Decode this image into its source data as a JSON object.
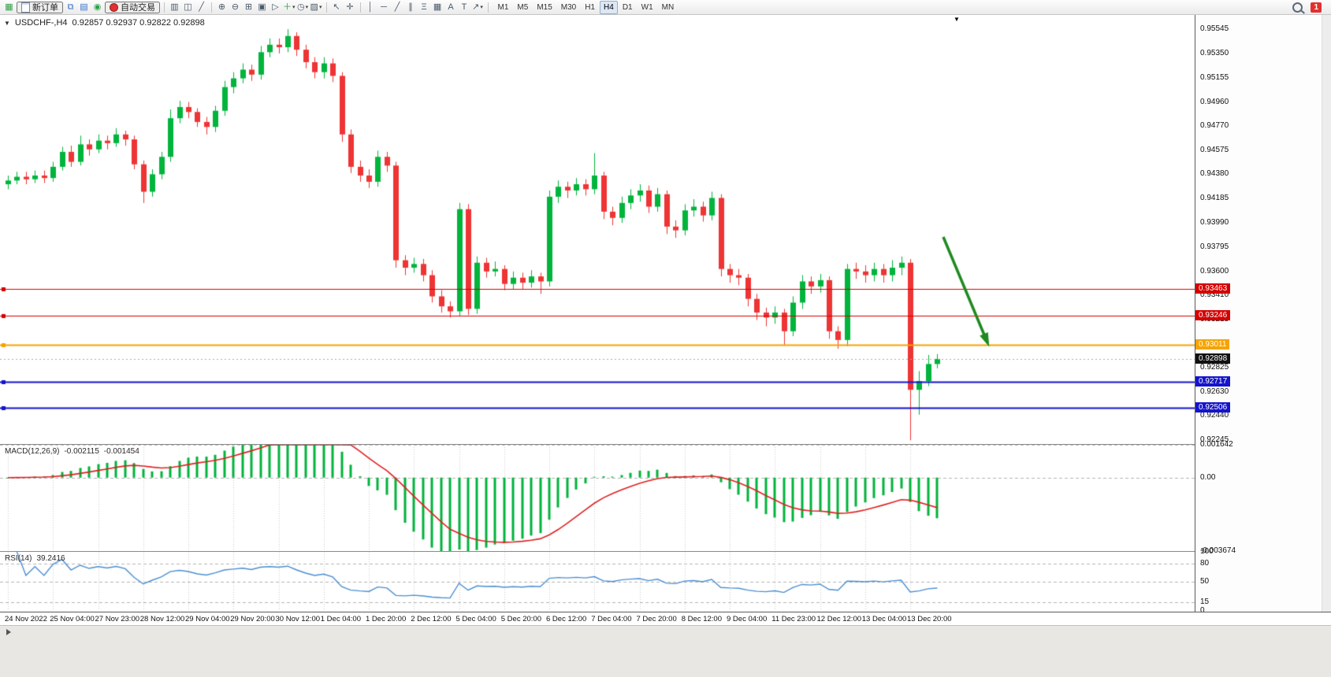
{
  "toolbar": {
    "buttons": {
      "new_order": "新订单",
      "autotrade": "自动交易"
    },
    "timeframes": [
      "M1",
      "M5",
      "M15",
      "M30",
      "H1",
      "H4",
      "D1",
      "W1",
      "MN"
    ],
    "active_timeframe": "H4",
    "notification_badge": "1"
  },
  "chart": {
    "symbol_label": "USDCHF-,H4",
    "ohlc": "0.92857 0.92937 0.92822 0.92898",
    "current_price_label": "0.92898"
  },
  "price_axis": {
    "ticks": [
      "0.95545",
      "0.95350",
      "0.95155",
      "0.94960",
      "0.94770",
      "0.94575",
      "0.94380",
      "0.94185",
      "0.93990",
      "0.93795",
      "0.93600",
      "0.93410",
      "0.93215",
      "0.93020",
      "0.92825",
      "0.92630",
      "0.92440",
      "0.92245"
    ]
  },
  "time_axis": {
    "labels": [
      "24 Nov 2022",
      "25 Nov 04:00",
      "27 Nov 23:00",
      "28 Nov 12:00",
      "29 Nov 04:00",
      "29 Nov 20:00",
      "30 Nov 12:00",
      "1 Dec 04:00",
      "1 Dec 20:00",
      "2 Dec 12:00",
      "5 Dec 04:00",
      "5 Dec 20:00",
      "6 Dec 12:00",
      "7 Dec 04:00",
      "7 Dec 20:00",
      "8 Dec 12:00",
      "9 Dec 04:00",
      "11 Dec 23:00",
      "12 Dec 12:00",
      "13 Dec 04:00",
      "13 Dec 20:00"
    ]
  },
  "macd": {
    "name": "MACD(12,26,9)",
    "value_main": "-0.002115",
    "value_signal": "-0.001454",
    "axis_max": "0.001642",
    "axis_zero": "0.00",
    "axis_min": "-0.003674"
  },
  "rsi": {
    "name": "RSI(14)",
    "value": "39.2416",
    "axis": [
      "100",
      "80",
      "50",
      "15",
      "0"
    ],
    "levels": [
      80,
      50,
      15
    ]
  },
  "colors": {
    "bull": "#00b43c",
    "bear": "#ee3434",
    "macd_hist": "#00b43c",
    "macd_signal": "#e02020",
    "rsi_line": "#4a8fd2",
    "current_tag": "#111111",
    "arrow": "#1f8a1f"
  },
  "chart_data": {
    "type": "candlestick",
    "symbol": "USDCHF",
    "timeframe": "H4",
    "price_range_view": [
      0.92215,
      0.95659
    ],
    "current_price": 0.92898,
    "macd_scale": [
      -0.003674,
      0.001642
    ],
    "annotation_arrow": {
      "from": [
        1197,
        282
      ],
      "to": [
        1253,
        416
      ]
    },
    "hlines": [
      {
        "price": 0.93463,
        "label": "0.93463",
        "color": "#d40000",
        "width": 1.2
      },
      {
        "price": 0.93246,
        "label": "0.93246",
        "color": "#d40000",
        "width": 1.2
      },
      {
        "price": 0.93011,
        "label": "0.93011",
        "color": "#f5a300",
        "width": 2
      },
      {
        "price": 0.92717,
        "label": "0.92717",
        "color": "#1414cc",
        "width": 2
      },
      {
        "price": 0.92506,
        "label": "0.92506",
        "color": "#1414cc",
        "width": 2
      }
    ],
    "candles": [
      [
        0.943,
        0.9437,
        0.9426,
        0.9433
      ],
      [
        0.9433,
        0.944,
        0.943,
        0.9436
      ],
      [
        0.9436,
        0.944,
        0.943,
        0.9434
      ],
      [
        0.9434,
        0.9441,
        0.9431,
        0.9437
      ],
      [
        0.9437,
        0.9441,
        0.9431,
        0.9435
      ],
      [
        0.9435,
        0.9448,
        0.9432,
        0.9444
      ],
      [
        0.9444,
        0.946,
        0.9441,
        0.9456
      ],
      [
        0.9456,
        0.9461,
        0.9444,
        0.9448
      ],
      [
        0.9448,
        0.9469,
        0.9445,
        0.9462
      ],
      [
        0.9462,
        0.9466,
        0.9453,
        0.9458
      ],
      [
        0.9458,
        0.947,
        0.9455,
        0.9465
      ],
      [
        0.9465,
        0.9469,
        0.9458,
        0.9463
      ],
      [
        0.9463,
        0.9475,
        0.946,
        0.947
      ],
      [
        0.947,
        0.9473,
        0.9461,
        0.9466
      ],
      [
        0.9466,
        0.9469,
        0.9442,
        0.9446
      ],
      [
        0.9446,
        0.9449,
        0.9415,
        0.9424
      ],
      [
        0.9424,
        0.9442,
        0.942,
        0.9438
      ],
      [
        0.9438,
        0.9456,
        0.9434,
        0.9452
      ],
      [
        0.9452,
        0.949,
        0.9448,
        0.9483
      ],
      [
        0.9483,
        0.9497,
        0.9479,
        0.9492
      ],
      [
        0.9492,
        0.9496,
        0.9483,
        0.9488
      ],
      [
        0.9488,
        0.9491,
        0.9476,
        0.948
      ],
      [
        0.948,
        0.9484,
        0.947,
        0.9476
      ],
      [
        0.9476,
        0.9493,
        0.9472,
        0.9489
      ],
      [
        0.9489,
        0.9513,
        0.9485,
        0.9508
      ],
      [
        0.9508,
        0.952,
        0.9503,
        0.9515
      ],
      [
        0.9515,
        0.9527,
        0.9511,
        0.9522
      ],
      [
        0.9522,
        0.9526,
        0.9513,
        0.9518
      ],
      [
        0.9518,
        0.9541,
        0.9514,
        0.9536
      ],
      [
        0.9536,
        0.9547,
        0.9532,
        0.9542
      ],
      [
        0.9542,
        0.9547,
        0.9535,
        0.954
      ],
      [
        0.954,
        0.95545,
        0.9536,
        0.9549
      ],
      [
        0.9549,
        0.9552,
        0.9533,
        0.9538
      ],
      [
        0.9538,
        0.9542,
        0.9523,
        0.9528
      ],
      [
        0.9528,
        0.9532,
        0.9515,
        0.952
      ],
      [
        0.952,
        0.9532,
        0.9515,
        0.9527
      ],
      [
        0.9527,
        0.9531,
        0.9512,
        0.9517
      ],
      [
        0.9517,
        0.952,
        0.9464,
        0.947
      ],
      [
        0.947,
        0.9474,
        0.9439,
        0.9444
      ],
      [
        0.9444,
        0.9449,
        0.9432,
        0.9437
      ],
      [
        0.9437,
        0.9442,
        0.9427,
        0.9432
      ],
      [
        0.9432,
        0.9457,
        0.9428,
        0.9452
      ],
      [
        0.9452,
        0.9456,
        0.944,
        0.9445
      ],
      [
        0.9445,
        0.9448,
        0.9363,
        0.9369
      ],
      [
        0.9369,
        0.9373,
        0.9357,
        0.9363
      ],
      [
        0.9363,
        0.9371,
        0.9359,
        0.9366
      ],
      [
        0.9366,
        0.937,
        0.9352,
        0.9357
      ],
      [
        0.9357,
        0.9361,
        0.9335,
        0.934
      ],
      [
        0.934,
        0.9345,
        0.9327,
        0.9332
      ],
      [
        0.9332,
        0.9336,
        0.9323,
        0.9328
      ],
      [
        0.9328,
        0.9415,
        0.9324,
        0.941
      ],
      [
        0.941,
        0.9414,
        0.9325,
        0.933
      ],
      [
        0.933,
        0.9372,
        0.9326,
        0.9367
      ],
      [
        0.9367,
        0.9371,
        0.9355,
        0.936
      ],
      [
        0.936,
        0.9368,
        0.9356,
        0.9362
      ],
      [
        0.9362,
        0.9365,
        0.9345,
        0.935
      ],
      [
        0.935,
        0.936,
        0.9346,
        0.9355
      ],
      [
        0.9355,
        0.9359,
        0.9346,
        0.9351
      ],
      [
        0.9351,
        0.9361,
        0.9347,
        0.9356
      ],
      [
        0.9356,
        0.9359,
        0.9342,
        0.9352
      ],
      [
        0.9352,
        0.9425,
        0.9348,
        0.942
      ],
      [
        0.942,
        0.9433,
        0.9415,
        0.9428
      ],
      [
        0.9428,
        0.9432,
        0.9419,
        0.9425
      ],
      [
        0.9425,
        0.9435,
        0.9421,
        0.943
      ],
      [
        0.943,
        0.9434,
        0.9421,
        0.9426
      ],
      [
        0.9426,
        0.9455,
        0.9422,
        0.9437
      ],
      [
        0.9437,
        0.944,
        0.9402,
        0.9408
      ],
      [
        0.9408,
        0.9412,
        0.9397,
        0.9403
      ],
      [
        0.9403,
        0.942,
        0.9399,
        0.9415
      ],
      [
        0.9415,
        0.9426,
        0.941,
        0.9421
      ],
      [
        0.9421,
        0.943,
        0.9416,
        0.9425
      ],
      [
        0.9425,
        0.9429,
        0.9407,
        0.9412
      ],
      [
        0.9412,
        0.9427,
        0.9408,
        0.9422
      ],
      [
        0.9422,
        0.9425,
        0.939,
        0.9396
      ],
      [
        0.9396,
        0.9401,
        0.9387,
        0.9393
      ],
      [
        0.9393,
        0.9414,
        0.9389,
        0.9409
      ],
      [
        0.9409,
        0.9418,
        0.9404,
        0.9412
      ],
      [
        0.9412,
        0.9416,
        0.94,
        0.9405
      ],
      [
        0.9405,
        0.9424,
        0.9401,
        0.9419
      ],
      [
        0.9419,
        0.9422,
        0.9356,
        0.9362
      ],
      [
        0.9362,
        0.9366,
        0.9351,
        0.9357
      ],
      [
        0.9357,
        0.9362,
        0.9349,
        0.9355
      ],
      [
        0.9355,
        0.9358,
        0.9332,
        0.9338
      ],
      [
        0.9338,
        0.9342,
        0.9321,
        0.9327
      ],
      [
        0.9327,
        0.9331,
        0.9316,
        0.9323
      ],
      [
        0.9323,
        0.9332,
        0.9318,
        0.9327
      ],
      [
        0.9327,
        0.933,
        0.9301,
        0.9312
      ],
      [
        0.9312,
        0.934,
        0.9308,
        0.9335
      ],
      [
        0.9335,
        0.9357,
        0.933,
        0.9352
      ],
      [
        0.9352,
        0.9356,
        0.9342,
        0.9348
      ],
      [
        0.9348,
        0.9358,
        0.9343,
        0.9353
      ],
      [
        0.9353,
        0.9356,
        0.9306,
        0.9312
      ],
      [
        0.9312,
        0.9316,
        0.9298,
        0.9305
      ],
      [
        0.9305,
        0.9366,
        0.93,
        0.9362
      ],
      [
        0.9362,
        0.9367,
        0.9354,
        0.936
      ],
      [
        0.936,
        0.9365,
        0.9351,
        0.9357
      ],
      [
        0.9357,
        0.9367,
        0.9352,
        0.9362
      ],
      [
        0.9362,
        0.9366,
        0.9351,
        0.9357
      ],
      [
        0.9357,
        0.9369,
        0.9352,
        0.9363
      ],
      [
        0.9363,
        0.9372,
        0.9357,
        0.9367
      ],
      [
        0.9367,
        0.937,
        0.92245,
        0.9265
      ],
      [
        0.9265,
        0.928,
        0.9245,
        0.9272
      ],
      [
        0.9272,
        0.9293,
        0.9268,
        0.92857
      ],
      [
        0.92857,
        0.92937,
        0.92822,
        0.92898
      ]
    ]
  }
}
